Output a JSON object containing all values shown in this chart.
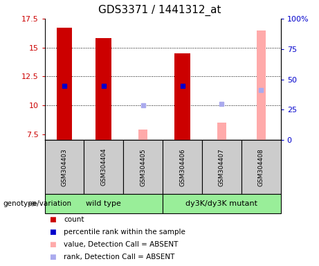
{
  "title": "GDS3371 / 1441312_at",
  "samples": [
    "GSM304403",
    "GSM304404",
    "GSM304405",
    "GSM304406",
    "GSM304407",
    "GSM304408"
  ],
  "ylim_left": [
    7.0,
    17.5
  ],
  "ylim_right": [
    0,
    100
  ],
  "yticks_left": [
    7.5,
    10.0,
    12.5,
    15.0,
    17.5
  ],
  "yticks_right": [
    0,
    25,
    50,
    75,
    100
  ],
  "ytick_labels_left": [
    "7.5",
    "10",
    "12.5",
    "15",
    "17.5"
  ],
  "ytick_labels_right": [
    "0",
    "25",
    "50",
    "75",
    "100%"
  ],
  "count_values": [
    16.7,
    15.8,
    null,
    14.5,
    null,
    null
  ],
  "rank_values": [
    11.7,
    11.7,
    null,
    11.7,
    null,
    null
  ],
  "absent_value_values": [
    null,
    null,
    7.9,
    null,
    8.5,
    16.5
  ],
  "absent_rank_values": [
    null,
    null,
    10.0,
    null,
    10.1,
    11.3
  ],
  "count_color": "#cc0000",
  "rank_color": "#0000cc",
  "absent_value_color": "#ffaaaa",
  "absent_rank_color": "#aaaaee",
  "bar_width": 0.4,
  "group_wildtype": [
    0,
    2
  ],
  "group_mutant": [
    3,
    5
  ],
  "group_wildtype_label": "wild type",
  "group_mutant_label": "dy3K/dy3K mutant",
  "group_color": "#99ee99",
  "sample_box_color": "#cccccc",
  "background_color": "#ffffff",
  "left_axis_color": "#cc0000",
  "right_axis_color": "#0000cc",
  "grid_lines_at": [
    10.0,
    12.5,
    15.0
  ],
  "legend_items": [
    {
      "color": "#cc0000",
      "label": "count"
    },
    {
      "color": "#0000cc",
      "label": "percentile rank within the sample"
    },
    {
      "color": "#ffaaaa",
      "label": "value, Detection Call = ABSENT"
    },
    {
      "color": "#aaaaee",
      "label": "rank, Detection Call = ABSENT"
    }
  ],
  "genotype_label": "genotype/variation"
}
